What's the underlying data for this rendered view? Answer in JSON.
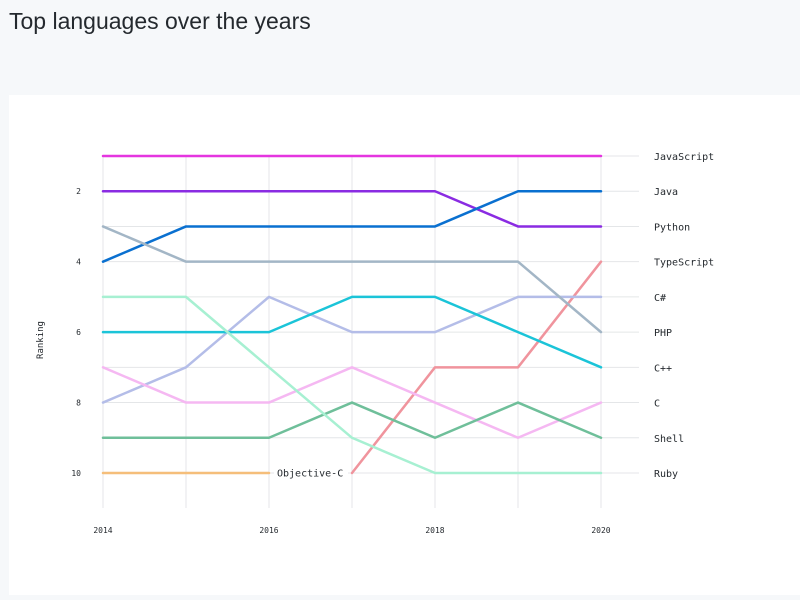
{
  "page": {
    "title": "Top languages over the years"
  },
  "chart_data": {
    "type": "line",
    "title": "Top languages over the years",
    "ylabel": "Ranking",
    "xlabel": "",
    "x": [
      2014,
      2015,
      2016,
      2017,
      2018,
      2019,
      2020
    ],
    "x_ticks": [
      "2014",
      "2016",
      "2018",
      "2020"
    ],
    "y_ticks": [
      "2",
      "4",
      "6",
      "8",
      "10"
    ],
    "ylim": [
      1,
      10
    ],
    "y_inverted": true,
    "grid": true,
    "series": [
      {
        "name": "JavaScript",
        "color": "#e535e0",
        "values": [
          1,
          1,
          1,
          1,
          1,
          1,
          1
        ]
      },
      {
        "name": "Python",
        "color": "#8a2be2",
        "values": [
          2,
          2,
          2,
          2,
          2,
          3,
          3
        ]
      },
      {
        "name": "Java",
        "color": "#0a70d0",
        "values": [
          4,
          3,
          3,
          3,
          3,
          2,
          2
        ]
      },
      {
        "name": "TypeScript",
        "color": "#f0949d",
        "values": [
          null,
          null,
          null,
          10,
          7,
          7,
          4
        ]
      },
      {
        "name": "C#",
        "color": "#b4bde8",
        "values": [
          8,
          7,
          5,
          6,
          6,
          5,
          5
        ]
      },
      {
        "name": "PHP",
        "color": "#a3b6c6",
        "values": [
          3,
          4,
          4,
          4,
          4,
          4,
          6
        ]
      },
      {
        "name": "C++",
        "color": "#1bc4d8",
        "values": [
          6,
          6,
          6,
          5,
          5,
          6,
          7
        ]
      },
      {
        "name": "C",
        "color": "#f5b8f2",
        "values": [
          7,
          8,
          8,
          7,
          8,
          9,
          8
        ]
      },
      {
        "name": "Shell",
        "color": "#6fbf9a",
        "values": [
          9,
          9,
          9,
          8,
          9,
          8,
          9
        ]
      },
      {
        "name": "Ruby",
        "color": "#a7f0d2",
        "values": [
          5,
          5,
          7,
          9,
          10,
          10,
          10
        ]
      },
      {
        "name": "Objective-C",
        "color": "#f5be7a",
        "values": [
          10,
          10,
          10,
          null,
          null,
          null,
          null
        ],
        "inline_label": "Objective-C"
      }
    ],
    "legend_order": [
      "JavaScript",
      "Python",
      "Java",
      "TypeScript",
      "C#",
      "PHP",
      "C++",
      "C",
      "Shell",
      "Ruby"
    ]
  }
}
